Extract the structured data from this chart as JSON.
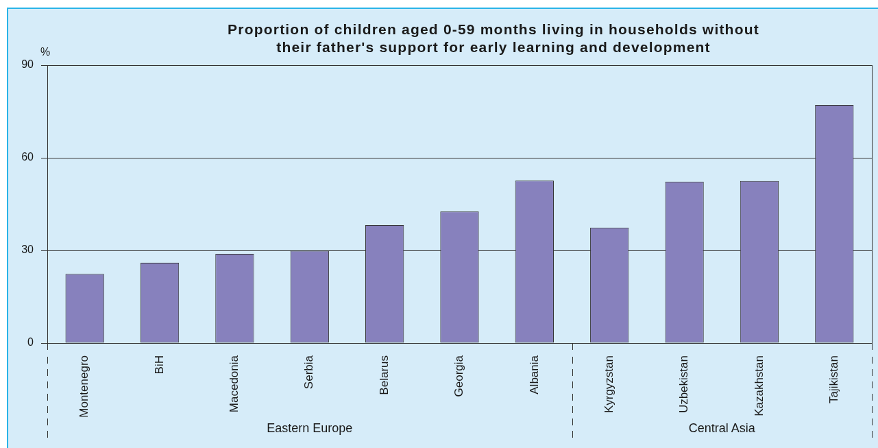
{
  "chart_data": {
    "type": "bar",
    "title": "Proportion of children aged 0-59 months living in households without their father's support for early learning and development",
    "ylabel": "%",
    "categories": [
      "Montenegro",
      "BiH",
      "Macedonia",
      "Serbia",
      "Belarus",
      "Georgia",
      "Albania",
      "Kyrgyzstan",
      "Uzbekistan",
      "Kazakhstan",
      "Tajikistan"
    ],
    "values": [
      22.4,
      26.0,
      28.9,
      29.9,
      38.2,
      42.6,
      52.6,
      37.4,
      52.3,
      52.5,
      77.1
    ],
    "color": "#8781bd",
    "ylim": [
      0,
      90
    ],
    "yticks": [
      0,
      30,
      60,
      90
    ],
    "grid": "y",
    "annotations": [
      "Eastern Europe",
      "Central Asia"
    ]
  }
}
